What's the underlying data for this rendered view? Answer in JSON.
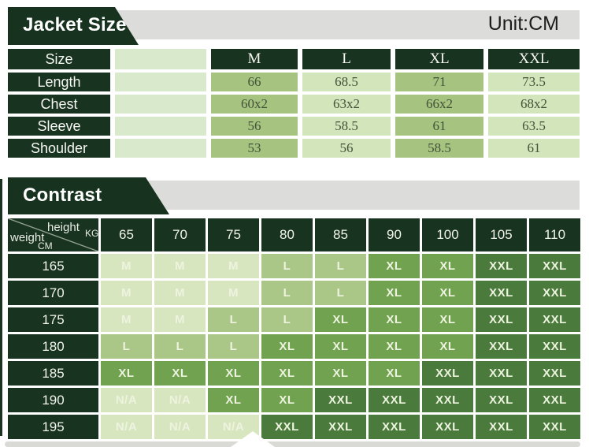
{
  "size_table": {
    "title": "Jacket Size",
    "unit": "Unit:CM",
    "header_label": "Size",
    "sizes": [
      "M",
      "L",
      "XL",
      "XXL"
    ],
    "rows": [
      {
        "label": "Length",
        "values": [
          "66",
          "68.5",
          "71",
          "73.5"
        ]
      },
      {
        "label": "Chest",
        "values": [
          "60x2",
          "63x2",
          "66x2",
          "68x2"
        ]
      },
      {
        "label": "Sleeve",
        "values": [
          "56",
          "58.5",
          "61",
          "63.5"
        ]
      },
      {
        "label": "Shoulder",
        "values": [
          "53",
          "56",
          "58.5",
          "61"
        ]
      }
    ]
  },
  "contrast_table": {
    "title": "Contrast",
    "corner": {
      "top_label": "height",
      "top_unit": "KG",
      "bottom_label": "weight",
      "bottom_unit": "CM"
    },
    "weights_kg": [
      "65",
      "70",
      "75",
      "80",
      "85",
      "90",
      "100",
      "105",
      "110"
    ],
    "heights_cm": [
      "165",
      "170",
      "175",
      "180",
      "185",
      "190",
      "195"
    ],
    "matrix": [
      [
        "M",
        "M",
        "M",
        "L",
        "L",
        "XL",
        "XL",
        "XXL",
        "XXL"
      ],
      [
        "M",
        "M",
        "M",
        "L",
        "L",
        "XL",
        "XL",
        "XXL",
        "XXL"
      ],
      [
        "M",
        "M",
        "L",
        "L",
        "XL",
        "XL",
        "XL",
        "XXL",
        "XXL"
      ],
      [
        "L",
        "L",
        "L",
        "XL",
        "XL",
        "XL",
        "XL",
        "XXL",
        "XXL"
      ],
      [
        "XL",
        "XL",
        "XL",
        "XL",
        "XL",
        "XL",
        "XXL",
        "XXL",
        "XXL"
      ],
      [
        "N/A",
        "N/A",
        "XL",
        "XL",
        "XXL",
        "XXL",
        "XXL",
        "XXL",
        "XXL"
      ],
      [
        "N/A",
        "N/A",
        "N/A",
        "XXL",
        "XXL",
        "XXL",
        "XXL",
        "XXL",
        "XXL"
      ]
    ]
  },
  "chart_data": [
    {
      "type": "table",
      "title": "Jacket Size",
      "unit": "CM",
      "columns": [
        "Size",
        "M",
        "L",
        "XL",
        "XXL"
      ],
      "rows": [
        [
          "Length",
          "66",
          "68.5",
          "71",
          "73.5"
        ],
        [
          "Chest",
          "60x2",
          "63x2",
          "66x2",
          "68x2"
        ],
        [
          "Sleeve",
          "56",
          "58.5",
          "61",
          "63.5"
        ],
        [
          "Shoulder",
          "53",
          "56",
          "58.5",
          "61"
        ]
      ]
    },
    {
      "type": "heatmap",
      "title": "Contrast",
      "xlabel": "height KG (as printed; columns are kg values)",
      "ylabel": "weight CM (as printed; rows are cm values)",
      "x": [
        "65",
        "70",
        "75",
        "80",
        "85",
        "90",
        "100",
        "105",
        "110"
      ],
      "y": [
        "165",
        "170",
        "175",
        "180",
        "185",
        "190",
        "195"
      ],
      "values": [
        [
          "M",
          "M",
          "M",
          "L",
          "L",
          "XL",
          "XL",
          "XXL",
          "XXL"
        ],
        [
          "M",
          "M",
          "M",
          "L",
          "L",
          "XL",
          "XL",
          "XXL",
          "XXL"
        ],
        [
          "M",
          "M",
          "L",
          "L",
          "XL",
          "XL",
          "XL",
          "XXL",
          "XXL"
        ],
        [
          "L",
          "L",
          "L",
          "XL",
          "XL",
          "XL",
          "XL",
          "XXL",
          "XXL"
        ],
        [
          "XL",
          "XL",
          "XL",
          "XL",
          "XL",
          "XL",
          "XXL",
          "XXL",
          "XXL"
        ],
        [
          "N/A",
          "N/A",
          "XL",
          "XL",
          "XXL",
          "XXL",
          "XXL",
          "XXL",
          "XXL"
        ],
        [
          "N/A",
          "N/A",
          "N/A",
          "XXL",
          "XXL",
          "XXL",
          "XXL",
          "XXL",
          "XXL"
        ]
      ],
      "legend_colors": {
        "M": "#d8e6c0",
        "L": "#abc787",
        "XL": "#70a24f",
        "XXL": "#4a7b3c",
        "N/A": "#d8e6c0"
      }
    }
  ],
  "colors": {
    "dark_green": "#18331f",
    "banner_green": "#17321e",
    "gray_strip": "#dcdcda",
    "table1_medium_cell": "#a6c37f",
    "table1_light_cell": "#d3e5ba",
    "table1_blank_cell": "#d9e9cc",
    "value_text": "#43523a",
    "cell_m": "#d8e6c0",
    "cell_l": "#abc787",
    "cell_xl": "#70a24f",
    "cell_xxl": "#4a7b3c",
    "cell_letter_text": "#edf3df"
  }
}
